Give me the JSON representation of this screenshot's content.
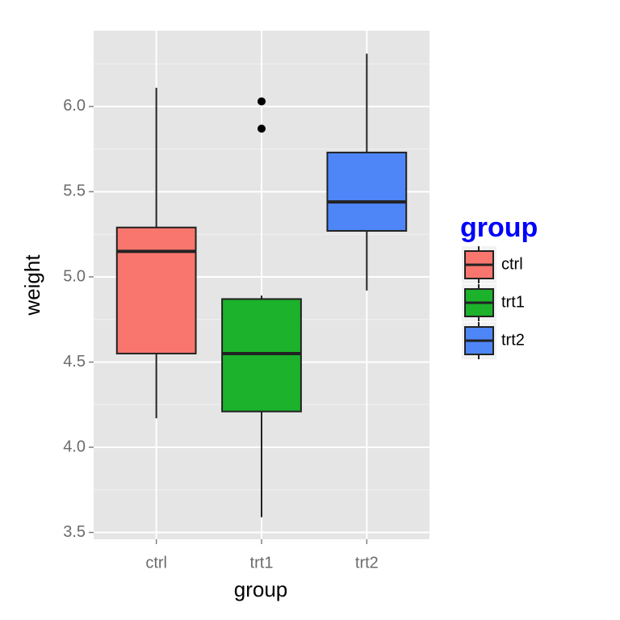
{
  "chart_data": {
    "type": "boxplot",
    "x_label": "group",
    "y_label": "weight",
    "categories": [
      "ctrl",
      "trt1",
      "trt2"
    ],
    "series": [
      {
        "name": "ctrl",
        "color": "#f8766d",
        "min": 4.17,
        "q1": 4.55,
        "median": 5.15,
        "q3": 5.29,
        "max": 6.11,
        "outliers": []
      },
      {
        "name": "trt1",
        "color": "#1cb22c",
        "min": 3.59,
        "q1": 4.21,
        "median": 4.55,
        "q3": 4.87,
        "max": 4.89,
        "outliers": [
          6.03,
          5.87
        ]
      },
      {
        "name": "trt2",
        "color": "#4f86f7",
        "min": 4.92,
        "q1": 5.27,
        "median": 5.44,
        "q3": 5.73,
        "max": 6.31,
        "outliers": []
      }
    ],
    "ylim": [
      3.46,
      6.445
    ],
    "yticks": [
      3.5,
      {
        "value": 4,
        "label": "4.0"
      },
      4.5,
      {
        "value": 5,
        "label": "5.0"
      },
      5.5,
      {
        "value": 6,
        "label": "6.0"
      }
    ],
    "y_minor_ticks": [
      3.75,
      4.25,
      4.75,
      5.25,
      5.75,
      6.25
    ],
    "grid": true,
    "legend": {
      "title": "group",
      "title_color": "#0000ff",
      "position": "right"
    }
  }
}
